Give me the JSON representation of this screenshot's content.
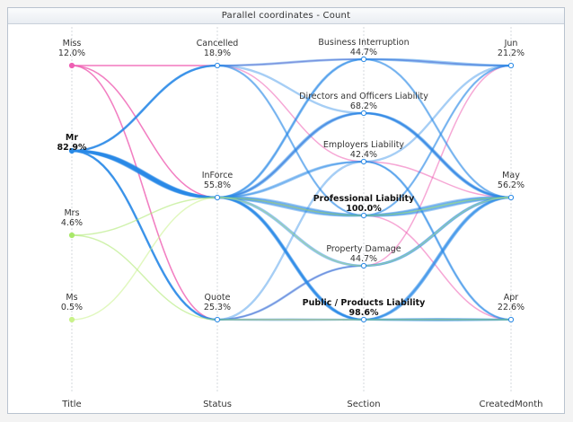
{
  "panel": {
    "title": "Parallel coordinates - Count"
  },
  "chart_data": {
    "type": "parallel-coordinates",
    "title": "Parallel coordinates - Count",
    "measure": "Count",
    "axes": [
      {
        "name": "Title",
        "categories": [
          {
            "label": "Miss",
            "pct": "12.0%",
            "value": 12.0
          },
          {
            "label": "Mr",
            "pct": "82.9%",
            "value": 82.9
          },
          {
            "label": "Mrs",
            "pct": "4.6%",
            "value": 4.6
          },
          {
            "label": "Ms",
            "pct": "0.5%",
            "value": 0.5
          }
        ]
      },
      {
        "name": "Status",
        "categories": [
          {
            "label": "Cancelled",
            "pct": "18.9%",
            "value": 18.9
          },
          {
            "label": "InForce",
            "pct": "55.8%",
            "value": 55.8
          },
          {
            "label": "Quote",
            "pct": "25.3%",
            "value": 25.3
          }
        ]
      },
      {
        "name": "Section",
        "categories": [
          {
            "label": "Business Interruption",
            "pct": "44.7%",
            "value": 44.7
          },
          {
            "label": "Directors and Officers Liability",
            "pct": "68.2%",
            "value": 68.2
          },
          {
            "label": "Employers Liability",
            "pct": "42.4%",
            "value": 42.4
          },
          {
            "label": "Professional Liability",
            "pct": "100.0%",
            "value": 100.0
          },
          {
            "label": "Property Damage",
            "pct": "44.7%",
            "value": 44.7
          },
          {
            "label": "Public / Products Liability",
            "pct": "98.6%",
            "value": 98.6
          }
        ]
      },
      {
        "name": "CreatedMonth",
        "categories": [
          {
            "label": "Jun",
            "pct": "21.2%",
            "value": 21.2
          },
          {
            "label": "May",
            "pct": "56.2%",
            "value": 56.2
          },
          {
            "label": "Apr",
            "pct": "22.6%",
            "value": 22.6
          }
        ]
      }
    ],
    "title_colors": {
      "Miss": "#ee5fb3",
      "Mr": "#2a8ae6",
      "Mrs": "#a9e86a",
      "Ms": "#c9f28a"
    },
    "flows": [
      {
        "color_by": "Miss",
        "path": [
          "Miss",
          "Cancelled",
          "Business Interruption",
          "Jun"
        ],
        "weight": 1
      },
      {
        "color_by": "Miss",
        "path": [
          "Miss",
          "Cancelled",
          "Employers Liability",
          "May"
        ],
        "weight": 1
      },
      {
        "color_by": "Miss",
        "path": [
          "Miss",
          "InForce",
          "Directors and Officers Liability",
          "May"
        ],
        "weight": 1
      },
      {
        "color_by": "Miss",
        "path": [
          "Miss",
          "InForce",
          "Professional Liability",
          "Apr"
        ],
        "weight": 1
      },
      {
        "color_by": "Miss",
        "path": [
          "Miss",
          "Quote",
          "Property Damage",
          "Jun"
        ],
        "weight": 1
      },
      {
        "color_by": "Miss",
        "path": [
          "Miss",
          "Quote",
          "Public / Products Liability",
          "Apr"
        ],
        "weight": 1
      },
      {
        "color_by": "Mr",
        "path": [
          "Mr",
          "InForce",
          "Professional Liability",
          "May"
        ],
        "weight": 10
      },
      {
        "color_by": "Mr",
        "path": [
          "Mr",
          "InForce",
          "Public / Products Liability",
          "May"
        ],
        "weight": 8
      },
      {
        "color_by": "Mr",
        "path": [
          "Mr",
          "InForce",
          "Directors and Officers Liability",
          "May"
        ],
        "weight": 7
      },
      {
        "color_by": "Mr",
        "path": [
          "Mr",
          "InForce",
          "Business Interruption",
          "Jun"
        ],
        "weight": 5
      },
      {
        "color_by": "Mr",
        "path": [
          "Mr",
          "InForce",
          "Employers Liability",
          "Apr"
        ],
        "weight": 4
      },
      {
        "color_by": "Mr",
        "path": [
          "Mr",
          "InForce",
          "Property Damage",
          "May"
        ],
        "weight": 5
      },
      {
        "color_by": "Mr",
        "path": [
          "Mr",
          "InForce",
          "Public / Products Liability",
          "Apr"
        ],
        "weight": 4
      },
      {
        "color_by": "Mr",
        "path": [
          "Mr",
          "Cancelled",
          "Business Interruption",
          "May"
        ],
        "weight": 3
      },
      {
        "color_by": "Mr",
        "path": [
          "Mr",
          "Cancelled",
          "Professional Liability",
          "Jun"
        ],
        "weight": 3
      },
      {
        "color_by": "Mr",
        "path": [
          "Mr",
          "Cancelled",
          "Directors and Officers Liability",
          "May"
        ],
        "weight": 2
      },
      {
        "color_by": "Mr",
        "path": [
          "Mr",
          "Quote",
          "Public / Products Liability",
          "Apr"
        ],
        "weight": 3
      },
      {
        "color_by": "Mr",
        "path": [
          "Mr",
          "Quote",
          "Property Damage",
          "May"
        ],
        "weight": 3
      },
      {
        "color_by": "Mr",
        "path": [
          "Mr",
          "Quote",
          "Employers Liability",
          "Jun"
        ],
        "weight": 2
      },
      {
        "color_by": "Mrs",
        "path": [
          "Mrs",
          "InForce",
          "Professional Liability",
          "May"
        ],
        "weight": 1
      },
      {
        "color_by": "Mrs",
        "path": [
          "Mrs",
          "Quote",
          "Public / Products Liability",
          "Apr"
        ],
        "weight": 1
      },
      {
        "color_by": "Ms",
        "path": [
          "Ms",
          "InForce",
          "Property Damage",
          "May"
        ],
        "weight": 1
      }
    ]
  }
}
